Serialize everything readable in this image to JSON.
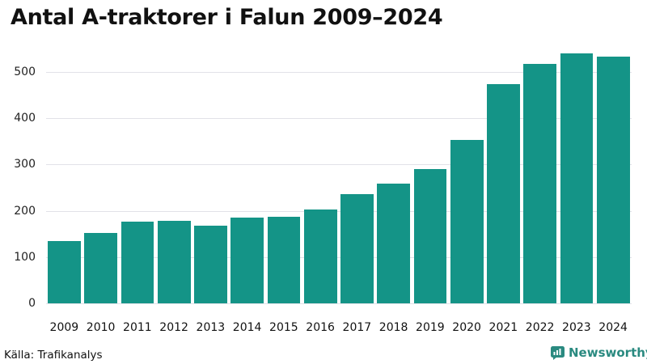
{
  "title": "Antal A-traktorer i Falun 2009–2024",
  "source": "Källa: Trafikanalys",
  "brand": {
    "name": "Newsworthy",
    "icon": "bar-chart-speech-bubble-icon",
    "color": "#2a8a80"
  },
  "colors": {
    "bar": "#149487",
    "grid": "#e2e2e8"
  },
  "y_ticks": [
    "0",
    "100",
    "200",
    "300",
    "400",
    "500"
  ],
  "chart_data": {
    "type": "bar",
    "title": "Antal A-traktorer i Falun 2009–2024",
    "xlabel": "",
    "ylabel": "",
    "categories": [
      "2009",
      "2010",
      "2011",
      "2012",
      "2013",
      "2014",
      "2015",
      "2016",
      "2017",
      "2018",
      "2019",
      "2020",
      "2021",
      "2022",
      "2023",
      "2024"
    ],
    "values": [
      135,
      152,
      177,
      179,
      167,
      185,
      187,
      202,
      236,
      258,
      290,
      352,
      473,
      517,
      539,
      532
    ],
    "ylim": [
      0,
      550
    ],
    "yticks": [
      0,
      100,
      200,
      300,
      400,
      500
    ],
    "grid": true,
    "legend": null,
    "source": "Källa: Trafikanalys"
  }
}
